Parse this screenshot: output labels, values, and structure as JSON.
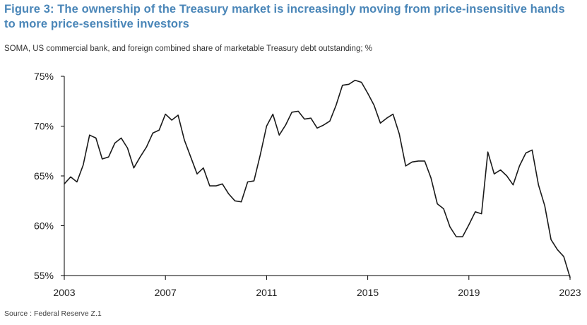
{
  "colors": {
    "title": "#4a86b8",
    "line": "#1a1a1a",
    "axis": "#000000",
    "text": "#222222"
  },
  "title_lines": [
    "Figure 3: The ownership of the Treasury market is increasingly moving from price-insensitive hands",
    "to more price-sensitive investors"
  ],
  "source": "Source : Federal Reserve Z.1",
  "chart_data": {
    "type": "line",
    "title": "Figure 3: The ownership of the Treasury market is increasingly moving from price-insensitive hands to more price-sensitive investors",
    "subtitle": "SOMA, US commercial bank, and foreign combined share of marketable Treasury debt outstanding; %",
    "xlabel": "",
    "ylabel": "",
    "xlim": [
      2003,
      2023
    ],
    "ylim": [
      55,
      75
    ],
    "x_ticks": [
      2003,
      2007,
      2011,
      2015,
      2019,
      2023
    ],
    "x_tick_labels": [
      "2003",
      "2007",
      "2011",
      "2015",
      "2019",
      "2023"
    ],
    "y_ticks": [
      55,
      60,
      65,
      70,
      75
    ],
    "y_tick_labels": [
      "55%",
      "60%",
      "65%",
      "70%",
      "75%"
    ],
    "grid": false,
    "legend": "none",
    "series": [
      {
        "name": "Combined share",
        "x": [
          2003.0,
          2003.25,
          2003.5,
          2003.75,
          2004.0,
          2004.25,
          2004.5,
          2004.75,
          2005.0,
          2005.25,
          2005.5,
          2005.75,
          2006.0,
          2006.25,
          2006.5,
          2006.75,
          2007.0,
          2007.25,
          2007.5,
          2007.75,
          2008.0,
          2008.25,
          2008.5,
          2008.75,
          2009.0,
          2009.25,
          2009.5,
          2009.75,
          2010.0,
          2010.25,
          2010.5,
          2010.75,
          2011.0,
          2011.25,
          2011.5,
          2011.75,
          2012.0,
          2012.25,
          2012.5,
          2012.75,
          2013.0,
          2013.25,
          2013.5,
          2013.75,
          2014.0,
          2014.25,
          2014.5,
          2014.75,
          2015.0,
          2015.25,
          2015.5,
          2015.75,
          2016.0,
          2016.25,
          2016.5,
          2016.75,
          2017.0,
          2017.25,
          2017.5,
          2017.75,
          2018.0,
          2018.25,
          2018.5,
          2018.75,
          2019.0,
          2019.25,
          2019.5,
          2019.75,
          2020.0,
          2020.25,
          2020.5,
          2020.75,
          2021.0,
          2021.25,
          2021.5,
          2021.75,
          2022.0,
          2022.25,
          2022.5,
          2022.75,
          2023.0
        ],
        "values": [
          64.2,
          64.9,
          64.4,
          66.1,
          69.1,
          68.8,
          66.7,
          66.9,
          68.3,
          68.8,
          67.8,
          65.8,
          66.9,
          67.9,
          69.3,
          69.6,
          71.2,
          70.6,
          71.1,
          68.6,
          66.9,
          65.2,
          65.8,
          64.0,
          64.0,
          64.2,
          63.2,
          62.5,
          62.4,
          64.4,
          64.5,
          67.1,
          70.0,
          71.2,
          69.1,
          70.1,
          71.4,
          71.5,
          70.7,
          70.8,
          69.8,
          70.1,
          70.5,
          72.1,
          74.1,
          74.2,
          74.6,
          74.4,
          73.3,
          72.1,
          70.3,
          70.8,
          71.2,
          69.2,
          66.0,
          66.4,
          66.5,
          66.5,
          64.8,
          62.2,
          61.7,
          59.9,
          58.9,
          58.9,
          60.1,
          61.4,
          61.2,
          67.4,
          65.2,
          65.6,
          65.0,
          64.1,
          66.0,
          67.3,
          67.6,
          64.1,
          62.0,
          58.6,
          57.6,
          56.9,
          54.8
        ]
      }
    ]
  }
}
